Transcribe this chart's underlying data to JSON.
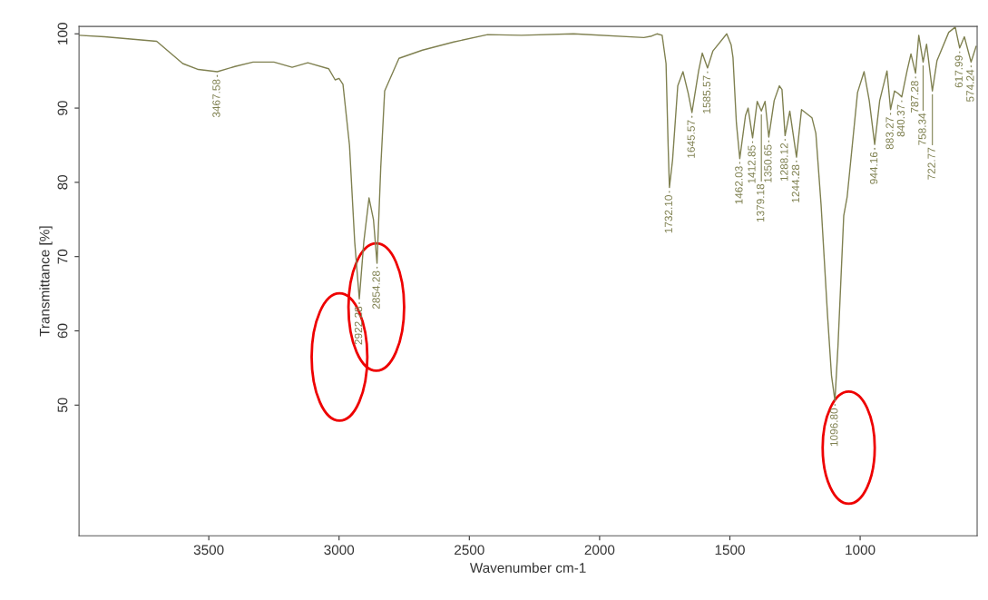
{
  "chart_data": {
    "type": "line",
    "xlabel": "Wavenumber cm-1",
    "ylabel": "Transmittance [%]",
    "xlim": [
      3998,
      551
    ],
    "ylim": [
      32.4,
      101
    ],
    "xticks": [
      3500,
      3000,
      2500,
      2000,
      1500,
      1000
    ],
    "yticks": [
      50,
      60,
      70,
      80,
      90,
      100
    ],
    "grid": false,
    "legend": false,
    "marker": "none",
    "line_style": "solid",
    "series": [
      {
        "color": "#7f8050",
        "x": [
          3998,
          3900,
          3800,
          3700,
          3650,
          3600,
          3540,
          3467.58,
          3400,
          3330,
          3250,
          3180,
          3120,
          3040,
          3015,
          3000,
          2985,
          2960,
          2940,
          2922.28,
          2905,
          2885,
          2868,
          2854.28,
          2840,
          2825,
          2770,
          2680,
          2560,
          2430,
          2300,
          2100,
          1830,
          1800,
          1780,
          1760,
          1745,
          1737,
          1732.1,
          1720,
          1700,
          1680,
          1660,
          1645.57,
          1620,
          1606,
          1585.57,
          1565,
          1512,
          1495,
          1488,
          1475,
          1462.03,
          1440,
          1430,
          1412.85,
          1395,
          1379.18,
          1365,
          1350.65,
          1330,
          1310,
          1300,
          1288.12,
          1270,
          1244.28,
          1225,
          1185,
          1170,
          1150,
          1125,
          1110,
          1096.8,
          1085,
          1063,
          1050,
          1010,
          985,
          965,
          944.16,
          925,
          897,
          883.27,
          868,
          855,
          840.37,
          820,
          805,
          787.28,
          775,
          758.34,
          745,
          722.77,
          705,
          660,
          635,
          617.99,
          600,
          574.24,
          555
        ],
        "values": [
          99.8,
          99.6,
          99.3,
          99.0,
          97.5,
          96.0,
          95.2,
          94.9,
          95.6,
          96.2,
          96.2,
          95.5,
          96.1,
          95.3,
          93.8,
          94.0,
          93.2,
          85,
          72,
          64.3,
          72,
          77.9,
          75,
          69.1,
          82,
          92.3,
          96.7,
          97.8,
          98.9,
          99.9,
          99.8,
          100,
          99.5,
          99.7,
          100,
          99.8,
          96,
          85,
          79.3,
          83,
          93,
          94.9,
          92,
          89.4,
          95,
          97.4,
          95.4,
          97.7,
          100,
          98.5,
          96.8,
          88,
          83.2,
          89,
          90,
          86,
          90.9,
          89.6,
          90.9,
          86.1,
          91,
          93,
          92.5,
          86.3,
          89.6,
          83.4,
          89.8,
          88.7,
          86.6,
          77,
          62,
          54,
          50.6,
          58,
          75.5,
          78,
          92.1,
          94.9,
          91,
          85.1,
          91,
          95,
          89.8,
          92.3,
          92,
          91.5,
          95,
          97.3,
          94.7,
          99.8,
          96.2,
          98.6,
          92.3,
          96.4,
          100.2,
          100.9,
          98.1,
          99.6,
          96.2,
          98.3
        ]
      }
    ],
    "annotations": [
      {
        "text": "3467.58",
        "x": 3467.58,
        "y": 94.9
      },
      {
        "text": "2922.28",
        "x": 2922.28,
        "y": 64.3
      },
      {
        "text": "2854.28",
        "x": 2854.28,
        "y": 69.1
      },
      {
        "text": "1732.10",
        "x": 1732.1,
        "y": 79.3
      },
      {
        "text": "1645.57",
        "x": 1645.57,
        "y": 89.4
      },
      {
        "text": "1585.57",
        "x": 1585.57,
        "y": 95.4
      },
      {
        "text": "1462.03",
        "x": 1462.03,
        "y": 83.2
      },
      {
        "text": "1412.85",
        "x": 1412.85,
        "y": 86
      },
      {
        "text": "1379.18",
        "x": 1379.18,
        "y": 89.6
      },
      {
        "text": "1350.65",
        "x": 1350.65,
        "y": 86.1
      },
      {
        "text": "1288.12",
        "x": 1288.12,
        "y": 86.3
      },
      {
        "text": "1244.28",
        "x": 1244.28,
        "y": 83.4
      },
      {
        "text": "1096.80",
        "x": 1096.8,
        "y": 50.6
      },
      {
        "text": "944.16",
        "x": 944.16,
        "y": 85.1
      },
      {
        "text": "883.27",
        "x": 883.27,
        "y": 89.8
      },
      {
        "text": "840.37",
        "x": 840.37,
        "y": 91.5
      },
      {
        "text": "787.28",
        "x": 787.28,
        "y": 94.7
      },
      {
        "text": "758.34",
        "x": 758.34,
        "y": 96.2
      },
      {
        "text": "722.77",
        "x": 722.77,
        "y": 92.3
      },
      {
        "text": "617.99",
        "x": 617.99,
        "y": 98.1
      },
      {
        "text": "574.24",
        "x": 574.24,
        "y": 96.2
      }
    ]
  }
}
